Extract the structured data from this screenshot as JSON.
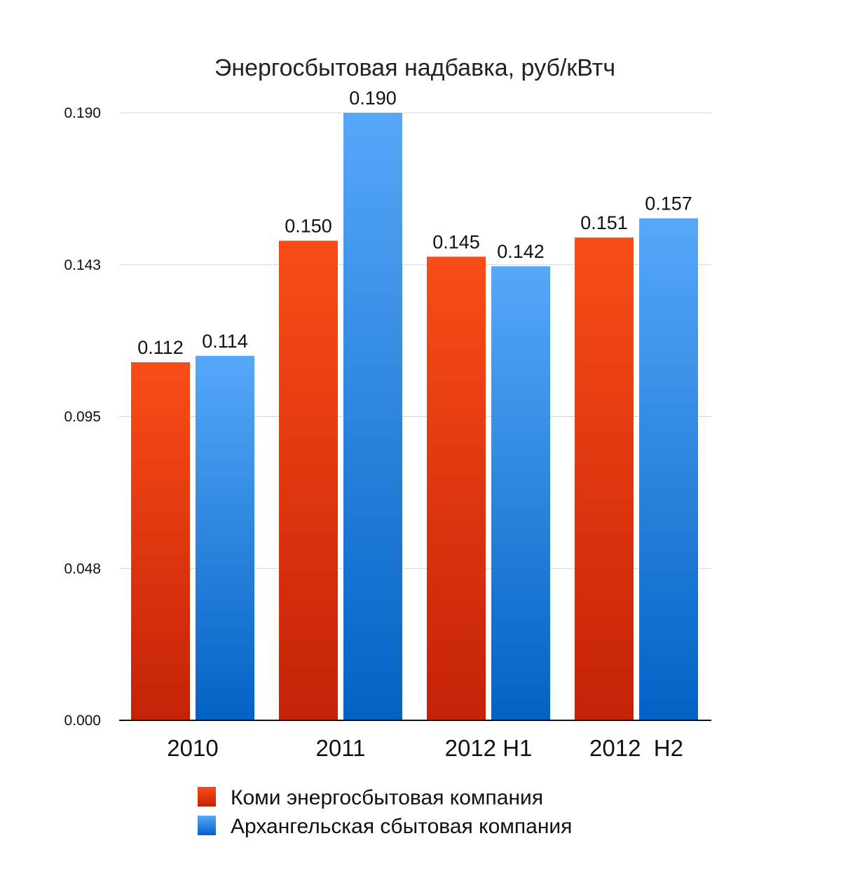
{
  "chart_data": {
    "type": "bar",
    "title": "Энергосбытовая надбавка, руб/кВтч",
    "xlabel": "",
    "ylabel": "",
    "categories": [
      "2010",
      "2011",
      "2012 H1",
      "2012  H2"
    ],
    "series": [
      {
        "name": "Коми энергосбытовая компания",
        "values": [
          0.112,
          0.15,
          0.145,
          0.151
        ],
        "labels": [
          "0.112",
          "0.150",
          "0.145",
          "0.151"
        ],
        "color_top": "#F84D17",
        "color_bottom": "#C42207"
      },
      {
        "name": "Архангельская сбытовая компания",
        "values": [
          0.114,
          0.19,
          0.142,
          0.157
        ],
        "labels": [
          "0.114",
          "0.190",
          "0.142",
          "0.157"
        ],
        "color_top": "#56A8F8",
        "color_bottom": "#0262C4"
      }
    ],
    "ylim": [
      0,
      0.19
    ],
    "yticks": [
      {
        "value": 0,
        "label": "0.000"
      },
      {
        "value": 0.0475,
        "label": "0.048"
      },
      {
        "value": 0.095,
        "label": "0.095"
      },
      {
        "value": 0.1425,
        "label": "0.143"
      },
      {
        "value": 0.19,
        "label": "0.190"
      }
    ],
    "grid": true,
    "legend_position": "bottom"
  }
}
